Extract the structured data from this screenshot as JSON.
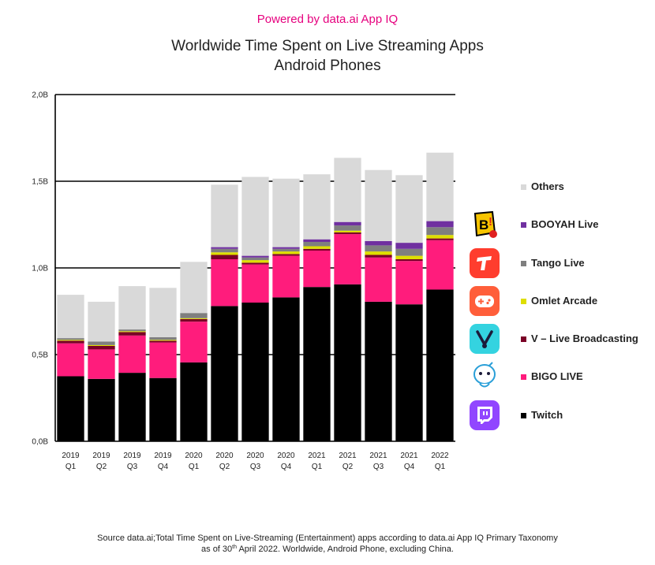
{
  "header": {
    "powered_by": "Powered by data.ai App IQ",
    "title_line1": "Worldwide Time Spent on Live Streaming Apps",
    "title_line2": "Android Phones"
  },
  "colors": {
    "brand_pink": "#e6007e"
  },
  "chart_data": {
    "type": "bar",
    "stacked": true,
    "title": "Worldwide Time Spent on Live Streaming Apps — Android Phones",
    "xlabel": "",
    "ylabel": "",
    "ylim": [
      0,
      2.0
    ],
    "y_ticks": [
      "0,0B",
      "0,5B",
      "1,0B",
      "1,5B",
      "2,0B"
    ],
    "y_tick_values": [
      0,
      0.5,
      1.0,
      1.5,
      2.0
    ],
    "grid": true,
    "categories": [
      [
        "2019",
        "Q1"
      ],
      [
        "2019",
        "Q2"
      ],
      [
        "2019",
        "Q3"
      ],
      [
        "2019",
        "Q4"
      ],
      [
        "2020",
        "Q1"
      ],
      [
        "2020",
        "Q2"
      ],
      [
        "2020",
        "Q3"
      ],
      [
        "2020",
        "Q4"
      ],
      [
        "2021",
        "Q1"
      ],
      [
        "2021",
        "Q2"
      ],
      [
        "2021",
        "Q3"
      ],
      [
        "2021",
        "Q4"
      ],
      [
        "2022",
        "Q1"
      ]
    ],
    "series": [
      {
        "name": "Twitch",
        "color": "#000000",
        "icon": "twitch-icon",
        "values": [
          0.375,
          0.36,
          0.395,
          0.365,
          0.455,
          0.78,
          0.8,
          0.83,
          0.89,
          0.905,
          0.805,
          0.79,
          0.875
        ]
      },
      {
        "name": "BIGO LIVE",
        "color": "#ff1c7c",
        "icon": "bigo-live-icon",
        "values": [
          0.19,
          0.17,
          0.215,
          0.205,
          0.235,
          0.27,
          0.22,
          0.24,
          0.21,
          0.29,
          0.255,
          0.25,
          0.285
        ]
      },
      {
        "name": "V – Live Broadcasting",
        "color": "#7a0026",
        "icon": "v-live-icon",
        "values": [
          0.015,
          0.02,
          0.02,
          0.01,
          0.015,
          0.025,
          0.01,
          0.01,
          0.01,
          0.01,
          0.015,
          0.01,
          0.01
        ]
      },
      {
        "name": "Omlet Arcade",
        "color": "#dede00",
        "icon": "omlet-arcade-icon",
        "values": [
          0.005,
          0.005,
          0.005,
          0.005,
          0.005,
          0.015,
          0.015,
          0.015,
          0.015,
          0.01,
          0.02,
          0.02,
          0.02
        ]
      },
      {
        "name": "Tango Live",
        "color": "#7f7f7f",
        "icon": "tango-live-icon",
        "values": [
          0.01,
          0.02,
          0.01,
          0.015,
          0.03,
          0.02,
          0.015,
          0.015,
          0.025,
          0.03,
          0.035,
          0.04,
          0.045
        ]
      },
      {
        "name": "BOOYAH Live",
        "color": "#7030a0",
        "icon": "booyah-live-icon",
        "values": [
          0,
          0,
          0,
          0,
          0,
          0.01,
          0.01,
          0.01,
          0.015,
          0.02,
          0.025,
          0.035,
          0.035
        ]
      },
      {
        "name": "Others",
        "color": "#d9d9d9",
        "icon": "",
        "values": [
          0.25,
          0.23,
          0.25,
          0.285,
          0.295,
          0.36,
          0.455,
          0.395,
          0.375,
          0.37,
          0.41,
          0.39,
          0.395
        ]
      }
    ],
    "legend_position": "right"
  },
  "source": {
    "line1": "Source data.ai;Total Time Spent on Live-Streaming (Entertainment) apps according to data.ai App IQ Primary Taxonomy",
    "line2_pre": "as of 30",
    "line2_sup": "th",
    "line2_post": " April 2022. Worldwide, Android Phone, excluding China."
  }
}
